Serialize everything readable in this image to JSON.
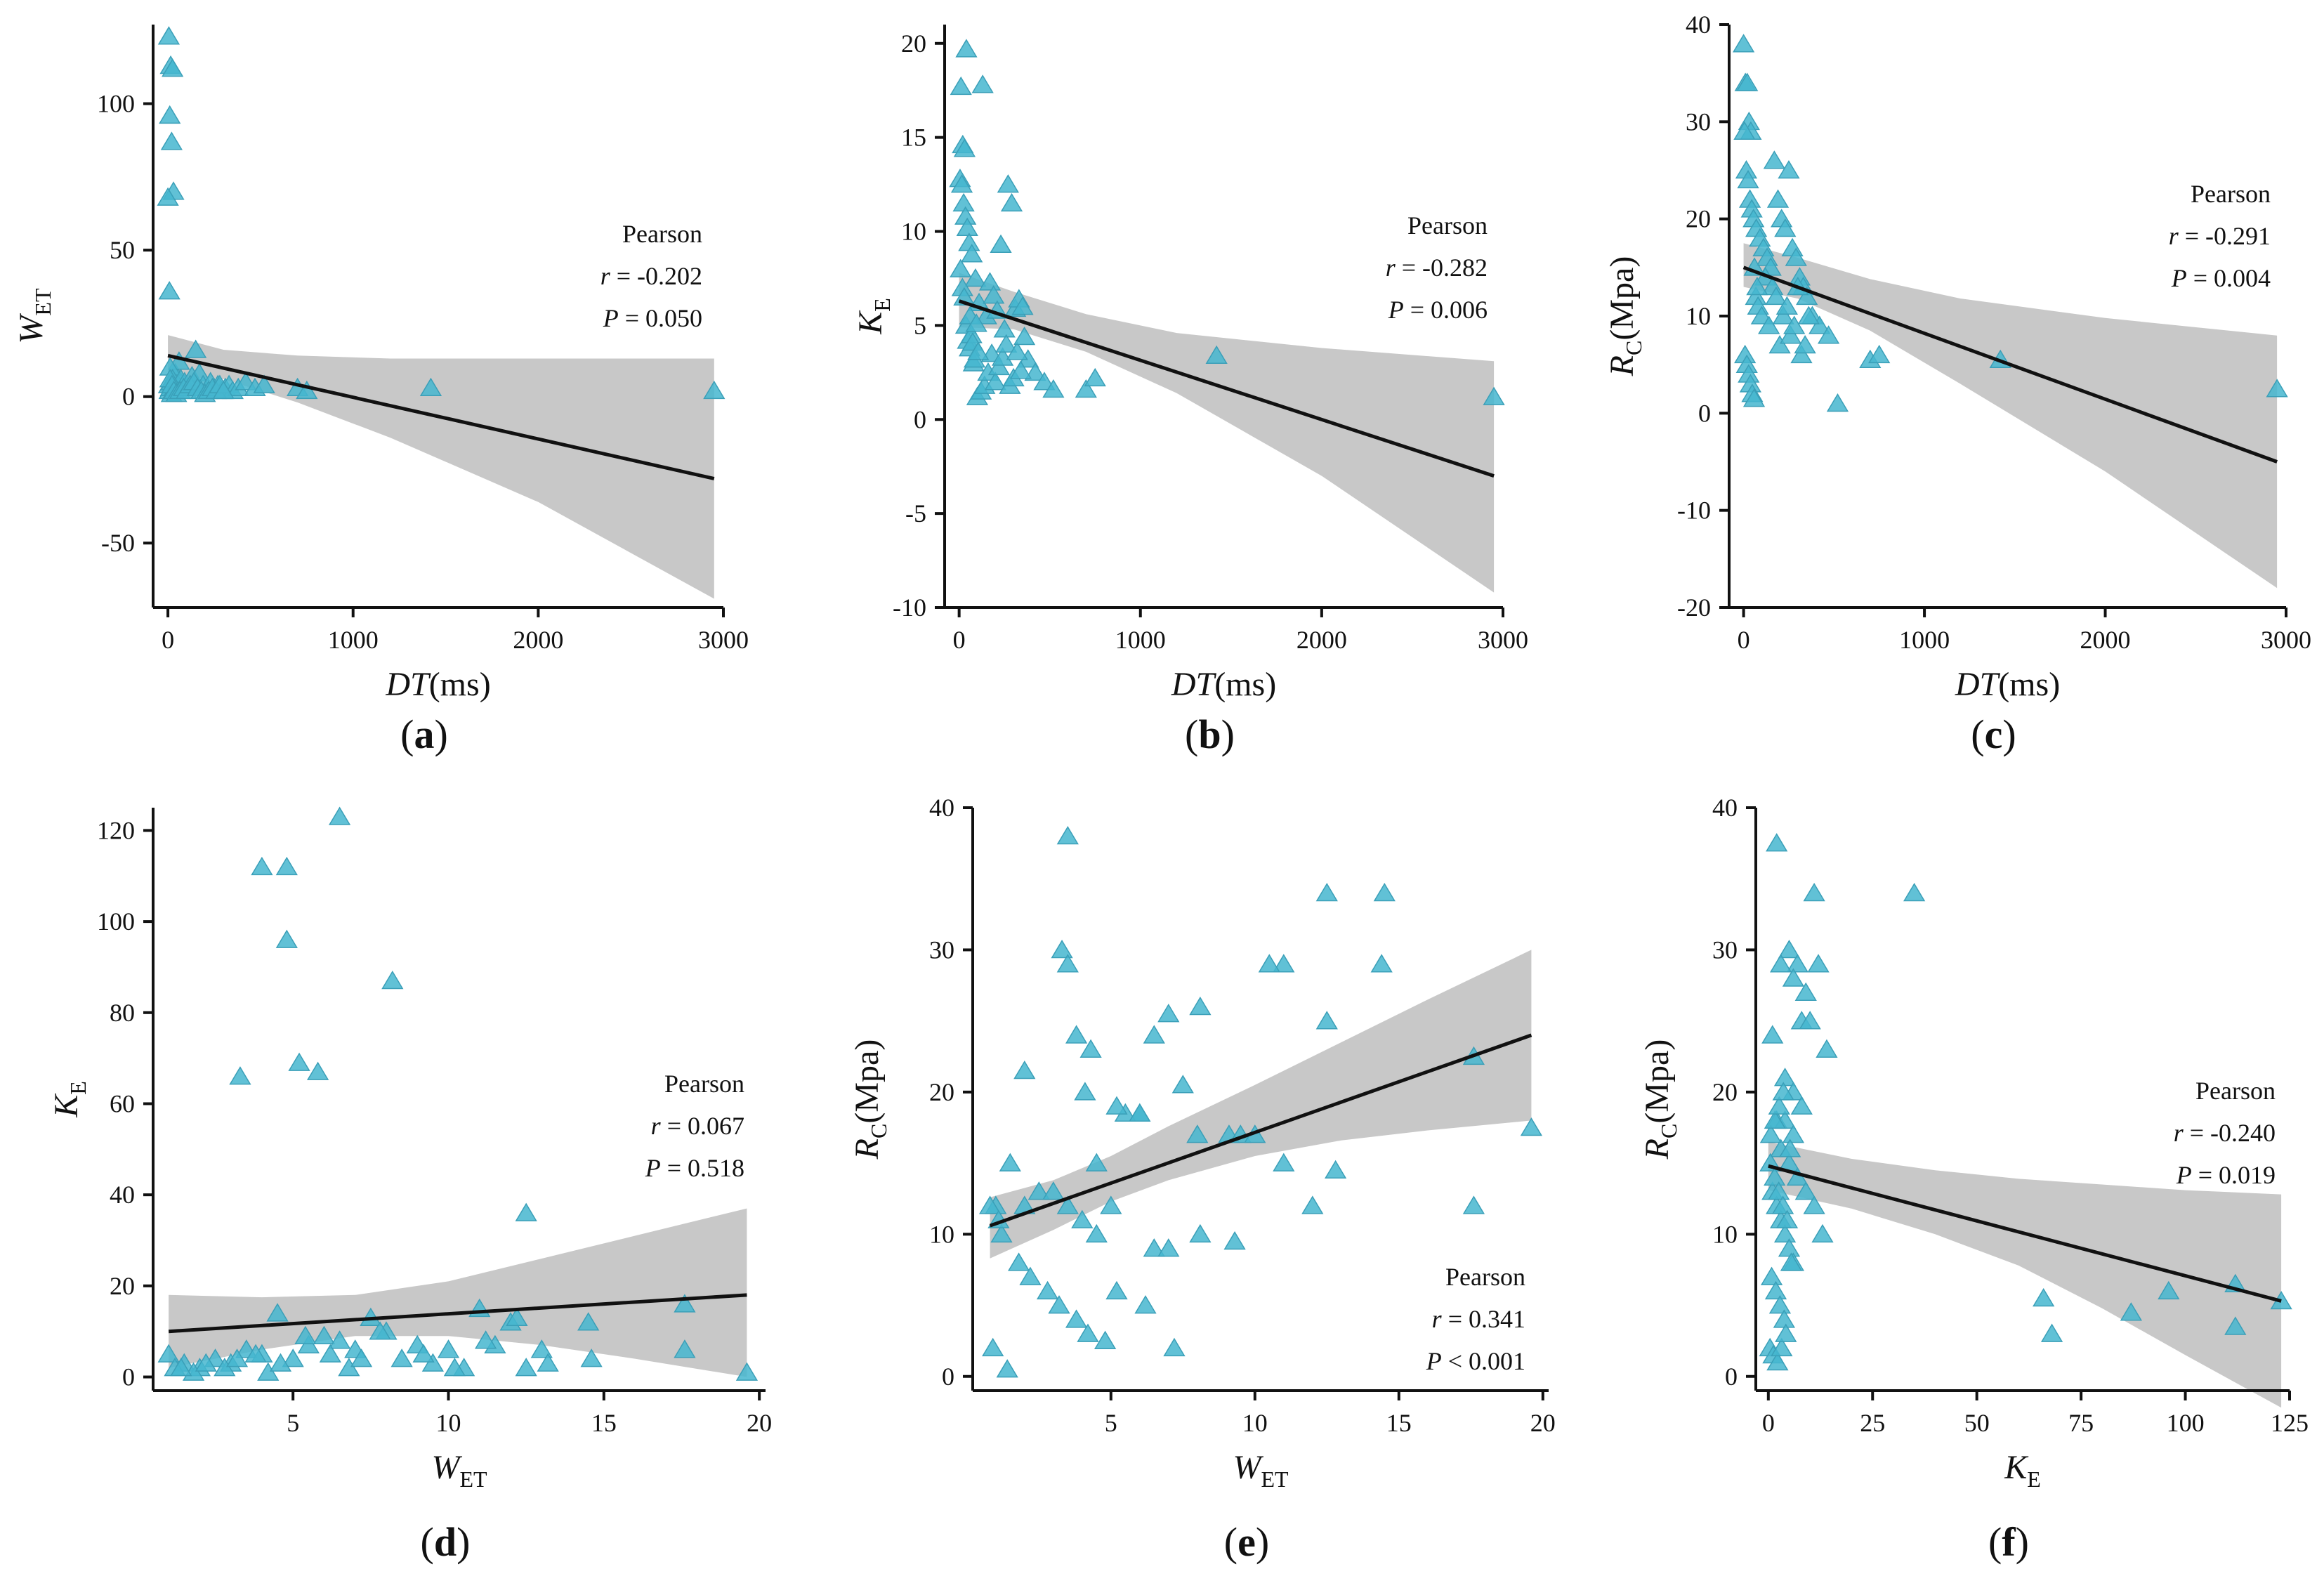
{
  "colors": {
    "point": "#45b6cf",
    "point_stroke": "#3a9fb8",
    "band": "#c8c8c8",
    "line": "#111111",
    "axis": "#111111"
  },
  "chart_data": [
    {
      "id": "a",
      "panel_label": "a",
      "type": "scatter",
      "xlabel": {
        "main": "DT",
        "italic": true,
        "sub": "",
        "unit": "(ms)"
      },
      "ylabel": {
        "main": "W",
        "italic": true,
        "sub": "ET",
        "unit": ""
      },
      "xlim": [
        -80,
        3000
      ],
      "ylim": [
        -72,
        127
      ],
      "xticks": [
        0,
        1000,
        2000,
        3000
      ],
      "yticks": [
        -50,
        0,
        50,
        100
      ],
      "pearson": {
        "title": "Pearson",
        "r_label": "r",
        "r_value": "= -0.202",
        "p_label": "P",
        "p_value": "= 0.050"
      },
      "fit": {
        "x": [
          0,
          2950
        ],
        "y": [
          14,
          -28
        ]
      },
      "band": {
        "x": [
          0,
          300,
          700,
          1200,
          2000,
          2950
        ],
        "upper": [
          21,
          16,
          14,
          13,
          13,
          13
        ],
        "lower": [
          7,
          6,
          -2,
          -14,
          -36,
          -69
        ]
      },
      "points": {
        "x": [
          5,
          15,
          25,
          10,
          20,
          30,
          0,
          8,
          40,
          60,
          12,
          5,
          18,
          25,
          35,
          45,
          55,
          70,
          90,
          110,
          130,
          150,
          170,
          190,
          210,
          230,
          250,
          270,
          290,
          310,
          330,
          350,
          380,
          420,
          470,
          520,
          700,
          750,
          1420,
          2950,
          8,
          15,
          20,
          28,
          35,
          12,
          22,
          32,
          45,
          65,
          85,
          100,
          120,
          140,
          160,
          180,
          200,
          220,
          240,
          260,
          280,
          300
        ],
        "y": [
          123,
          113,
          112,
          96,
          87,
          70,
          68,
          36,
          8,
          12,
          10,
          4,
          5,
          6,
          2,
          3,
          4,
          6,
          5,
          3,
          7,
          16,
          8,
          4,
          2,
          5,
          3,
          4,
          2,
          3,
          4,
          2,
          3,
          5,
          3,
          4,
          3,
          2,
          3,
          2,
          2,
          3,
          1,
          2,
          3,
          6,
          4,
          2,
          1,
          2,
          3,
          2,
          4,
          5,
          3,
          2,
          1,
          2,
          3,
          2,
          4,
          2
        ]
      }
    },
    {
      "id": "b",
      "panel_label": "b",
      "type": "scatter",
      "xlabel": {
        "main": "DT",
        "italic": true,
        "sub": "",
        "unit": "(ms)"
      },
      "ylabel": {
        "main": "K",
        "italic": true,
        "sub": "E",
        "unit": ""
      },
      "xlim": [
        -80,
        3000
      ],
      "ylim": [
        -10,
        21
      ],
      "xticks": [
        0,
        1000,
        2000,
        3000
      ],
      "yticks": [
        -10,
        -5,
        0,
        5,
        10,
        15,
        20
      ],
      "pearson": {
        "title": "Pearson",
        "r_label": "r",
        "r_value": "= -0.282",
        "p_label": "P",
        "p_value": "= 0.006"
      },
      "fit": {
        "x": [
          0,
          2950
        ],
        "y": [
          6.3,
          -3.0
        ]
      },
      "band": {
        "x": [
          0,
          300,
          700,
          1200,
          2000,
          2950
        ],
        "upper": [
          7.8,
          6.8,
          5.6,
          4.6,
          3.8,
          3.1
        ],
        "lower": [
          4.9,
          4.8,
          3.6,
          1.4,
          -3.0,
          -9.2
        ]
      },
      "points": {
        "x": [
          40,
          10,
          20,
          30,
          130,
          5,
          15,
          25,
          35,
          45,
          55,
          70,
          90,
          110,
          150,
          170,
          190,
          210,
          230,
          250,
          270,
          290,
          310,
          330,
          350,
          380,
          420,
          470,
          520,
          700,
          750,
          1420,
          2950,
          8,
          18,
          28,
          38,
          48,
          58,
          68,
          80,
          100,
          120,
          140,
          160,
          180,
          200,
          220,
          240,
          260,
          280,
          300,
          320,
          340,
          360,
          60,
          75,
          85,
          95,
          105
        ],
        "y": [
          19.7,
          17.7,
          14.6,
          14.4,
          17.8,
          12.8,
          12.5,
          11.5,
          10.8,
          10.2,
          9.4,
          8.8,
          7.5,
          6.2,
          5.5,
          7.3,
          6.6,
          5.8,
          9.3,
          4.8,
          12.5,
          11.5,
          5.9,
          6.4,
          6.0,
          3.2,
          2.5,
          2.0,
          1.6,
          1.6,
          2.2,
          3.4,
          1.2,
          8.0,
          7.0,
          6.5,
          5.0,
          4.2,
          3.8,
          4.5,
          3.0,
          1.2,
          1.5,
          1.8,
          2.5,
          3.5,
          2.0,
          2.8,
          3.3,
          4.0,
          1.8,
          2.2,
          3.6,
          2.6,
          4.4,
          5.5,
          4.1,
          3.2,
          5.1,
          3.6
        ]
      }
    },
    {
      "id": "c",
      "panel_label": "c",
      "type": "scatter",
      "xlabel": {
        "main": "DT",
        "italic": true,
        "sub": "",
        "unit": "(ms)"
      },
      "ylabel": {
        "main": "R",
        "italic": true,
        "sub": "C",
        "unit": "(Mpa)"
      },
      "xlim": [
        -80,
        3000
      ],
      "ylim": [
        -20,
        40
      ],
      "xticks": [
        0,
        1000,
        2000,
        3000
      ],
      "yticks": [
        -20,
        -10,
        0,
        10,
        20,
        30,
        40
      ],
      "pearson": {
        "title": "Pearson",
        "r_label": "r",
        "r_value": "= -0.291",
        "p_label": "P",
        "p_value": "= 0.004"
      },
      "fit": {
        "x": [
          0,
          2950
        ],
        "y": [
          15,
          -5
        ]
      },
      "band": {
        "x": [
          0,
          300,
          700,
          1200,
          2000,
          2950
        ],
        "upper": [
          17.5,
          16.0,
          13.8,
          11.8,
          9.8,
          8.0
        ],
        "lower": [
          13.0,
          11.8,
          8.5,
          3.0,
          -6.0,
          -18.0
        ]
      },
      "points": {
        "x": [
          0,
          10,
          20,
          30,
          40,
          5,
          15,
          25,
          35,
          45,
          55,
          70,
          90,
          110,
          130,
          150,
          170,
          190,
          210,
          230,
          250,
          270,
          290,
          310,
          330,
          350,
          380,
          420,
          470,
          520,
          700,
          750,
          1420,
          2950,
          8,
          18,
          28,
          38,
          48,
          58,
          68,
          80,
          100,
          120,
          140,
          160,
          180,
          200,
          220,
          240,
          260,
          280,
          300,
          320,
          340,
          360,
          60,
          75
        ],
        "y": [
          38,
          34,
          34,
          30,
          29,
          29,
          25,
          24,
          22,
          21,
          20,
          19,
          18,
          17,
          16,
          15,
          26,
          22,
          20,
          19,
          25,
          17,
          16,
          14,
          13,
          12,
          10,
          9,
          8,
          1,
          5.5,
          6,
          5.5,
          2.5,
          6,
          5,
          4,
          3,
          2,
          1.5,
          12,
          11,
          10,
          14,
          9,
          13,
          12,
          7,
          10,
          11,
          8,
          9,
          13,
          6,
          7,
          10,
          15,
          13
        ]
      }
    },
    {
      "id": "d",
      "panel_label": "d",
      "type": "scatter",
      "xlabel": {
        "main": "W",
        "italic": true,
        "sub": "ET",
        "unit": ""
      },
      "ylabel": {
        "main": "K",
        "italic": true,
        "sub": "E",
        "unit": ""
      },
      "xlim": [
        0.5,
        20.2
      ],
      "ylim": [
        -3,
        125
      ],
      "xticks": [
        5,
        10,
        15,
        20
      ],
      "yticks": [
        0,
        20,
        40,
        60,
        80,
        100,
        120
      ],
      "pearson": {
        "title": "Pearson",
        "r_label": "r",
        "r_value": "= 0.067",
        "p_label": "P",
        "p_value": "= 0.518"
      },
      "fit": {
        "x": [
          1,
          19.6
        ],
        "y": [
          10,
          18
        ]
      },
      "band": {
        "x": [
          1,
          4,
          7,
          10,
          13,
          16,
          19.6
        ],
        "upper": [
          18,
          17.5,
          18,
          21,
          26,
          31,
          37
        ],
        "lower": [
          2,
          6,
          9,
          9,
          7,
          4,
          0
        ]
      },
      "points": {
        "x": [
          6.5,
          4,
          4.8,
          4.8,
          8.2,
          5.2,
          5.8,
          3.3,
          12.5,
          12.5,
          17.6,
          17.6,
          19.6,
          1,
          1.5,
          2,
          2.5,
          3,
          3.5,
          4,
          4.5,
          5,
          5.5,
          6,
          6.5,
          7,
          7.5,
          8,
          8.5,
          9,
          9.5,
          10,
          10.5,
          11,
          11.5,
          12,
          13,
          14.5,
          1.2,
          1.8,
          2.2,
          2.8,
          3.2,
          3.8,
          4.2,
          4.6,
          5.4,
          6.2,
          6.8,
          7.2,
          7.8,
          9.2,
          10.2,
          11.2,
          12.2,
          13.2,
          14.6,
          1.4
        ],
        "y": [
          123,
          112,
          112,
          96,
          87,
          69,
          67,
          66,
          36,
          2,
          16,
          6,
          1,
          5,
          3,
          2,
          4,
          3,
          6,
          5,
          14,
          4,
          7,
          9,
          8,
          6,
          13,
          10,
          4,
          7,
          3,
          6,
          2,
          15,
          7,
          12,
          6,
          12,
          2,
          1,
          3,
          2,
          4,
          5,
          1,
          3,
          9,
          5,
          2,
          4,
          10,
          5,
          2,
          8,
          13,
          3,
          4,
          2
        ]
      }
    },
    {
      "id": "e",
      "panel_label": "e",
      "type": "scatter",
      "xlabel": {
        "main": "W",
        "italic": true,
        "sub": "ET",
        "unit": ""
      },
      "ylabel": {
        "main": "R",
        "italic": true,
        "sub": "C",
        "unit": "(Mpa)"
      },
      "xlim": [
        0.2,
        20.2
      ],
      "ylim": [
        -1,
        40
      ],
      "xticks": [
        5,
        10,
        15,
        20
      ],
      "yticks": [
        0,
        10,
        20,
        30,
        40
      ],
      "pearson": {
        "title": "Pearson",
        "r_label": "r",
        "r_value": "= 0.341",
        "p_label": "P",
        "p_value": "< 0.001"
      },
      "fit": {
        "x": [
          0.8,
          19.6
        ],
        "y": [
          10.6,
          24
        ]
      },
      "band": {
        "x": [
          0.8,
          3,
          5,
          7,
          10,
          13,
          16,
          19.6
        ],
        "upper": [
          12.6,
          13.8,
          15.5,
          17.6,
          20.5,
          23.5,
          26.5,
          30
        ],
        "lower": [
          8.3,
          10.3,
          12.3,
          13.8,
          15.5,
          16.6,
          17.3,
          18
        ]
      },
      "points": {
        "x": [
          3.5,
          3.3,
          3.5,
          14.5,
          12.5,
          11,
          10.5,
          14.4,
          3.8,
          4.1,
          7,
          8.1,
          6.5,
          12.5,
          17.6,
          4.3,
          2,
          6,
          5.5,
          5.2,
          7.5,
          9.1,
          9.5,
          8,
          11,
          12,
          4.5,
          1,
          1.5,
          2,
          2.5,
          3,
          3.5,
          4,
          4.5,
          5,
          6,
          6.5,
          7,
          8.1,
          9.3,
          10,
          12.8,
          17.6,
          19.6,
          1.2,
          1.8,
          2.2,
          2.8,
          3.2,
          3.8,
          4.2,
          4.8,
          5.2,
          6.2,
          7.2,
          0.9,
          1.4,
          0.8,
          1.1
        ],
        "y": [
          38,
          30,
          29,
          34,
          34,
          29,
          29,
          29,
          24,
          20,
          25.5,
          26,
          24,
          25,
          22.5,
          23,
          21.5,
          18.5,
          18.5,
          19,
          20.5,
          17,
          17,
          17,
          15,
          12,
          15,
          12,
          15,
          12,
          13,
          13,
          12,
          11,
          10,
          12,
          18.5,
          9,
          9,
          10,
          9.5,
          17,
          14.5,
          12,
          17.5,
          10,
          8,
          7,
          6,
          5,
          4,
          3,
          2.5,
          6,
          5,
          2,
          2,
          0.5,
          12,
          11
        ]
      }
    },
    {
      "id": "f",
      "panel_label": "f",
      "type": "scatter",
      "xlabel": {
        "main": "K",
        "italic": true,
        "sub": "E",
        "unit": ""
      },
      "ylabel": {
        "main": "R",
        "italic": true,
        "sub": "C",
        "unit": "(Mpa)"
      },
      "xlim": [
        -3,
        125
      ],
      "ylim": [
        -1,
        40
      ],
      "xticks": [
        0,
        25,
        50,
        75,
        100,
        125
      ],
      "yticks": [
        0,
        10,
        20,
        30,
        40
      ],
      "pearson": {
        "title": "Pearson",
        "r_label": "r",
        "r_value": "= -0.240",
        "p_label": "P",
        "p_value": "= 0.019"
      },
      "fit": {
        "x": [
          0,
          123
        ],
        "y": [
          14.8,
          5.3
        ]
      },
      "band": {
        "x": [
          0,
          20,
          40,
          60,
          80,
          100,
          123
        ],
        "upper": [
          16.5,
          15.3,
          14.5,
          13.9,
          13.5,
          13.1,
          12.8
        ],
        "lower": [
          13.1,
          11.8,
          10.0,
          7.8,
          4.8,
          1.5,
          -2.2
        ]
      },
      "points": {
        "x": [
          2,
          11,
          35,
          5,
          7,
          9,
          12,
          3,
          6,
          8,
          10,
          14,
          1,
          4,
          6,
          8,
          2,
          4,
          6,
          3,
          5,
          7,
          9,
          11,
          13,
          1,
          2,
          3,
          4,
          5,
          6,
          66,
          68,
          87,
          96,
          112,
          112,
          123,
          0.5,
          1.5,
          2.5,
          3.5,
          4.5,
          5.5,
          0.8,
          1.8,
          2.8,
          3.8,
          0.4,
          1.2,
          2.2,
          3.2,
          4.2,
          5.2,
          0.6,
          1.6,
          2.6,
          3.6
        ],
        "y": [
          37.5,
          34,
          34,
          30,
          29,
          27,
          29,
          29,
          28,
          25,
          25,
          23,
          24,
          21,
          20,
          19,
          18,
          18,
          17,
          16,
          15,
          14,
          13,
          12,
          10,
          13,
          12,
          11,
          10,
          9,
          8,
          5.5,
          3,
          4.5,
          6,
          3.5,
          6.5,
          5.3,
          15,
          14,
          13,
          12,
          11,
          8,
          7,
          6,
          5,
          4,
          2,
          1.5,
          1,
          2,
          3,
          16,
          17,
          18,
          19,
          20
        ]
      }
    }
  ]
}
